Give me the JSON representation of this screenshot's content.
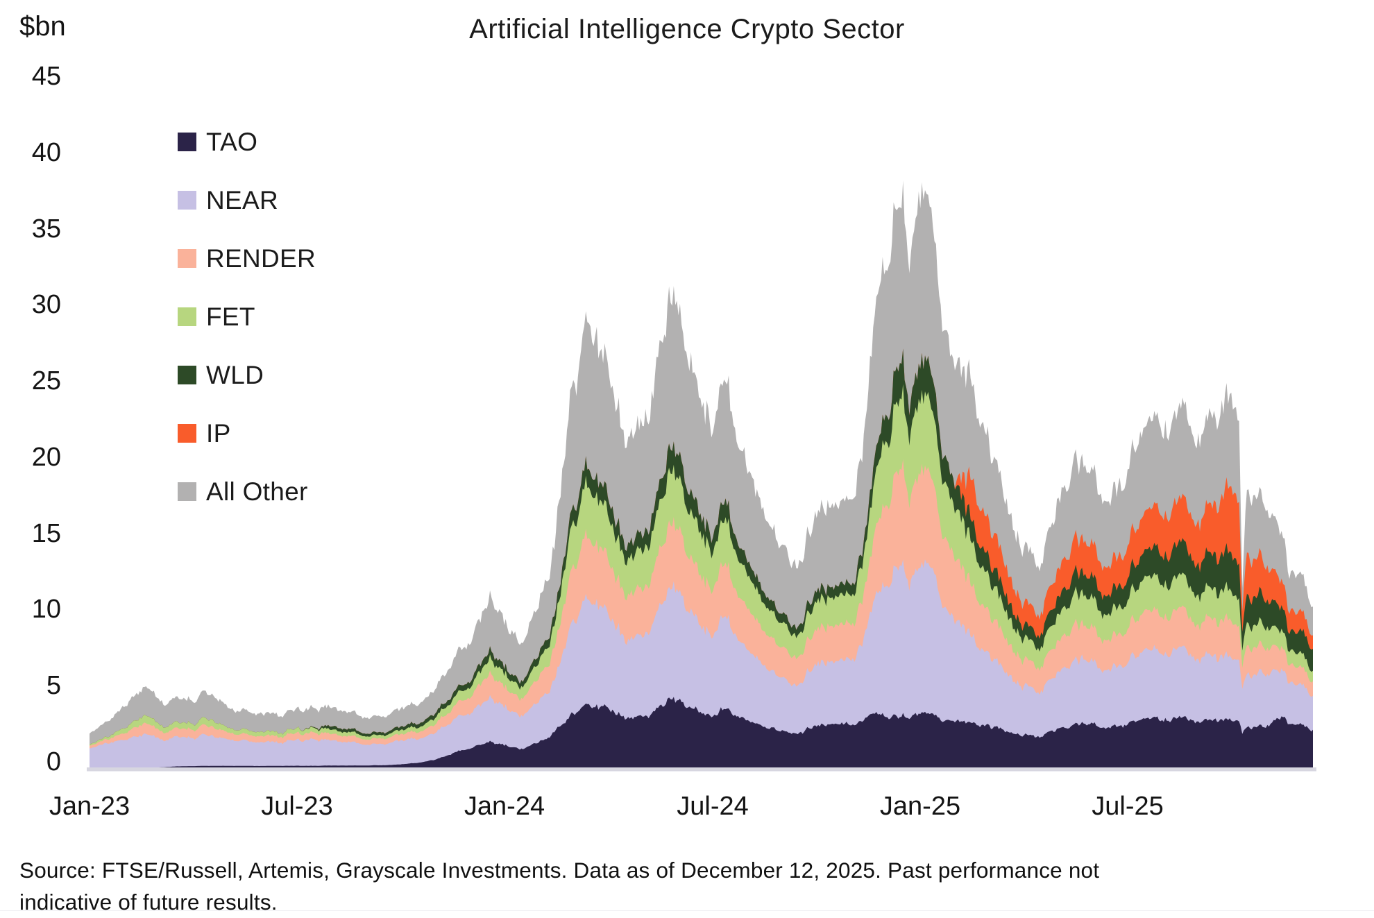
{
  "title": "Artificial Intelligence Crypto Sector",
  "y_axis": {
    "unit_label": "$bn",
    "ticks": [
      "45",
      "40",
      "35",
      "30",
      "25",
      "20",
      "15",
      "10",
      "5",
      "0"
    ]
  },
  "x_axis": {
    "ticks": [
      "Jan-23",
      "Jul-23",
      "Jan-24",
      "Jul-24",
      "Jan-25",
      "Jul-25"
    ]
  },
  "legend": [
    {
      "label": "TAO",
      "color": "#2b2348"
    },
    {
      "label": "NEAR",
      "color": "#c6c0e4"
    },
    {
      "label": "RENDER",
      "color": "#fab29a"
    },
    {
      "label": "FET",
      "color": "#b7d67f"
    },
    {
      "label": "WLD",
      "color": "#2d4a27"
    },
    {
      "label": "IP",
      "color": "#f95c2b"
    },
    {
      "label": "All Other",
      "color": "#b2b1b1"
    }
  ],
  "source_note": "Source: FTSE/Russell, Artemis, Grayscale Investments. Data as of December 12, 2025. Past performance not indicative of future results.",
  "chart_data": {
    "type": "area",
    "stacked": true,
    "title": "Artificial Intelligence Crypto Sector",
    "ylabel": "$bn",
    "ylim": [
      0,
      45
    ],
    "grid": false,
    "legend_position": "top-left",
    "x_unit": "months since Jan-2023",
    "x_tick_positions": [
      0,
      6,
      12,
      18,
      24,
      30
    ],
    "x_tick_labels": [
      "Jan-23",
      "Jul-23",
      "Jan-24",
      "Jul-24",
      "Jan-25",
      "Jul-25"
    ],
    "x_end": 35.37,
    "x": [
      0,
      0.5,
      1,
      1.5,
      2,
      2.5,
      3,
      3.5,
      4,
      4.5,
      5,
      5.5,
      6,
      6.5,
      7,
      7.5,
      8,
      8.5,
      9,
      9.5,
      10,
      10.5,
      11,
      11.6,
      12,
      12.5,
      13,
      13.5,
      13.8,
      14,
      14.4,
      15,
      15.5,
      16,
      16.5,
      16.7,
      17,
      17.5,
      18,
      18.3,
      19,
      19.5,
      20,
      20.5,
      21,
      21.5,
      22,
      22.5,
      23,
      23.4,
      23.7,
      24,
      24.2,
      24.5,
      24.8,
      25,
      25.5,
      26,
      26.5,
      27,
      27.5,
      28,
      28.5,
      29,
      29.5,
      30,
      30.5,
      31,
      31.5,
      32,
      32.5,
      33,
      33.25,
      33.32,
      33.45,
      34,
      34.5,
      34.7,
      34.85,
      35,
      35.2,
      35.37
    ],
    "series": [
      {
        "name": "TAO",
        "color": "#2b2348",
        "values": [
          0,
          0,
          0,
          0,
          0,
          0.06,
          0.09,
          0.1,
          0.1,
          0.1,
          0.1,
          0.1,
          0.11,
          0.11,
          0.12,
          0.12,
          0.13,
          0.14,
          0.18,
          0.3,
          0.55,
          0.9,
          1.3,
          1.7,
          1.45,
          1.3,
          1.6,
          2.5,
          3.2,
          3.8,
          4.3,
          3.9,
          3.3,
          3.5,
          4.0,
          4.4,
          4.2,
          3.7,
          3.4,
          3.9,
          3.1,
          2.6,
          2.4,
          2.3,
          2.7,
          2.9,
          3.0,
          3.3,
          3.6,
          3.7,
          3.4,
          3.6,
          3.6,
          3.2,
          3.0,
          2.9,
          2.8,
          2.5,
          2.4,
          2.2,
          2.1,
          2.5,
          2.8,
          2.7,
          2.5,
          2.6,
          2.9,
          2.8,
          3.0,
          2.8,
          2.9,
          3.0,
          2.9,
          2.2,
          2.6,
          2.5,
          3.2,
          2.7,
          2.9,
          2.9,
          2.75,
          2.6
        ]
      },
      {
        "name": "NEAR",
        "color": "#c6c0e4",
        "values": [
          1.3,
          1.55,
          1.9,
          2.1,
          1.9,
          1.75,
          1.85,
          1.95,
          1.7,
          1.6,
          1.65,
          1.5,
          1.7,
          1.75,
          1.65,
          1.5,
          1.4,
          1.38,
          1.45,
          1.55,
          1.9,
          2.1,
          2.4,
          2.85,
          2.5,
          2.3,
          2.6,
          3.6,
          5.4,
          6.5,
          7.3,
          6.3,
          5.2,
          5.6,
          6.6,
          7.2,
          6.8,
          5.8,
          5.3,
          6.1,
          4.7,
          3.9,
          3.5,
          3.3,
          3.9,
          4.2,
          4.5,
          6.0,
          9.0,
          11.0,
          9.2,
          9.8,
          10.0,
          8.2,
          7.0,
          6.5,
          5.4,
          4.3,
          3.9,
          3.3,
          3.1,
          3.7,
          4.2,
          3.9,
          3.6,
          3.7,
          4.1,
          3.9,
          4.2,
          3.8,
          3.9,
          4.0,
          3.8,
          2.9,
          3.4,
          3.2,
          2.9,
          2.5,
          2.7,
          2.7,
          2.55,
          2.4
        ]
      },
      {
        "name": "RENDER",
        "color": "#fab29a",
        "values": [
          0.18,
          0.25,
          0.45,
          0.7,
          0.55,
          0.5,
          0.55,
          0.6,
          0.45,
          0.4,
          0.42,
          0.38,
          0.45,
          0.45,
          0.42,
          0.38,
          0.35,
          0.35,
          0.38,
          0.45,
          0.6,
          0.8,
          1.1,
          1.6,
          1.3,
          1.2,
          1.5,
          2.3,
          3.2,
          3.8,
          4.3,
          3.6,
          3.0,
          3.2,
          3.7,
          4.1,
          3.9,
          3.3,
          3.1,
          3.5,
          2.7,
          2.2,
          2.0,
          1.9,
          2.2,
          2.4,
          2.5,
          3.2,
          5.5,
          7.2,
          5.8,
          6.2,
          6.3,
          5.0,
          4.3,
          4.0,
          3.2,
          2.5,
          2.2,
          1.8,
          1.7,
          2.0,
          2.3,
          2.1,
          1.9,
          2.0,
          2.3,
          2.2,
          2.4,
          2.1,
          2.2,
          2.3,
          2.1,
          1.4,
          1.8,
          1.6,
          1.35,
          1.1,
          1.2,
          1.2,
          1.1,
          1.0
        ]
      },
      {
        "name": "FET",
        "color": "#b7d67f",
        "values": [
          0.09,
          0.15,
          0.35,
          0.5,
          0.4,
          0.35,
          0.4,
          0.45,
          0.3,
          0.28,
          0.3,
          0.25,
          0.3,
          0.3,
          0.28,
          0.25,
          0.22,
          0.22,
          0.25,
          0.3,
          0.45,
          0.55,
          0.7,
          1.0,
          0.85,
          0.8,
          1.0,
          1.6,
          2.5,
          3.0,
          3.5,
          2.9,
          2.4,
          2.6,
          3.1,
          3.4,
          3.2,
          2.8,
          2.5,
          2.9,
          2.2,
          1.8,
          1.6,
          1.5,
          1.8,
          1.9,
          2.0,
          2.8,
          4.4,
          5.2,
          4.4,
          4.8,
          4.9,
          4.0,
          3.4,
          3.2,
          2.7,
          2.1,
          1.8,
          1.45,
          1.35,
          1.7,
          2.0,
          1.85,
          1.6,
          1.7,
          2.0,
          1.9,
          2.0,
          1.8,
          1.8,
          1.9,
          1.7,
          1.1,
          1.45,
          1.3,
          1.05,
          0.85,
          0.95,
          0.95,
          0.85,
          0.75
        ]
      },
      {
        "name": "WLD",
        "color": "#2d4a27",
        "values": [
          0,
          0,
          0,
          0,
          0,
          0,
          0,
          0,
          0,
          0,
          0,
          0,
          0,
          0.05,
          0.22,
          0.2,
          0.18,
          0.18,
          0.2,
          0.25,
          0.32,
          0.35,
          0.4,
          0.55,
          0.45,
          0.4,
          0.5,
          0.7,
          0.95,
          1.1,
          1.3,
          1.15,
          1.0,
          1.1,
          1.3,
          1.5,
          1.45,
          1.2,
          1.05,
          1.2,
          0.9,
          0.72,
          0.62,
          0.57,
          0.67,
          0.72,
          0.77,
          1.0,
          1.8,
          2.6,
          2.1,
          2.3,
          2.4,
          1.9,
          1.6,
          1.5,
          1.35,
          1.15,
          1.05,
          0.9,
          0.9,
          1.15,
          1.4,
          1.3,
          1.2,
          1.3,
          1.6,
          1.7,
          2.0,
          1.9,
          2.1,
          2.4,
          2.2,
          1.2,
          1.85,
          1.7,
          1.45,
          1.15,
          1.35,
          1.5,
          1.55,
          1.55
        ]
      },
      {
        "name": "IP",
        "color": "#f95c2b",
        "values": [
          0,
          0,
          0,
          0,
          0,
          0,
          0,
          0,
          0,
          0,
          0,
          0,
          0,
          0,
          0,
          0,
          0,
          0,
          0,
          0,
          0,
          0,
          0,
          0,
          0,
          0,
          0,
          0,
          0,
          0,
          0,
          0,
          0,
          0,
          0,
          0,
          0,
          0,
          0,
          0,
          0,
          0,
          0,
          0,
          0,
          0,
          0,
          0,
          0,
          0,
          0,
          0,
          0,
          0,
          0,
          0,
          2.6,
          2.2,
          1.9,
          1.5,
          1.4,
          1.8,
          2.2,
          2.0,
          1.8,
          1.9,
          2.3,
          2.4,
          2.6,
          2.5,
          3.0,
          4.2,
          3.9,
          1.3,
          2.7,
          2.1,
          1.6,
          1.25,
          1.35,
          1.35,
          1.15,
          0.95
        ]
      },
      {
        "name": "All Other",
        "color": "#b2b1b1",
        "values": [
          0.75,
          0.95,
          1.5,
          1.8,
          1.6,
          1.45,
          1.55,
          1.65,
          1.3,
          1.2,
          1.25,
          1.1,
          1.3,
          1.3,
          1.2,
          1.1,
          1.05,
          1.05,
          1.1,
          1.25,
          1.7,
          2.1,
          2.6,
          3.5,
          2.9,
          2.7,
          3.2,
          5.0,
          7.2,
          8.5,
          9.9,
          8.3,
          6.9,
          7.4,
          8.9,
          9.6,
          9.15,
          7.85,
          7.0,
          8.0,
          6.1,
          5.0,
          4.5,
          4.2,
          5.0,
          5.4,
          5.7,
          7.7,
          10.7,
          11.8,
          9.8,
          11.0,
          11.1,
          9.0,
          7.9,
          7.4,
          6.0,
          4.9,
          4.3,
          3.6,
          3.4,
          4.3,
          5.0,
          4.6,
          4.1,
          4.4,
          5.2,
          5.1,
          5.5,
          5.0,
          5.3,
          5.7,
          5.0,
          1.5,
          4.1,
          3.6,
          2.9,
          2.3,
          2.6,
          2.6,
          2.25,
          2.0
        ]
      }
    ]
  }
}
